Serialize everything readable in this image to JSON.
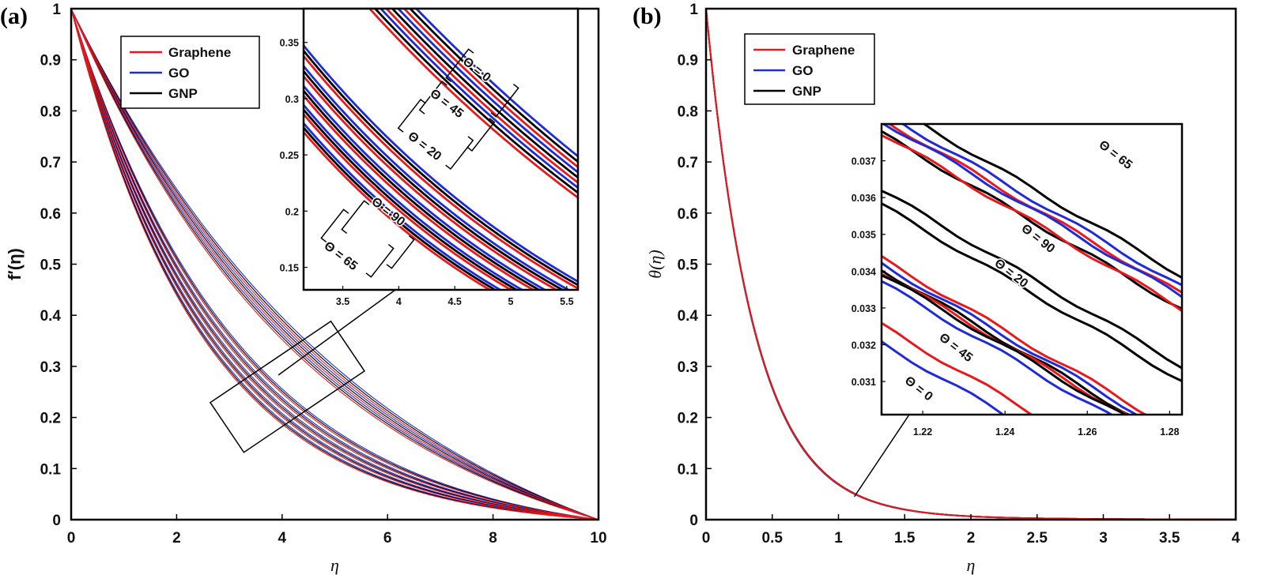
{
  "chart_data": [
    {
      "type": "line",
      "panel_label": "(a)",
      "xlabel": "η",
      "ylabel": "f′(η)",
      "xlim": [
        0,
        10
      ],
      "ylim": [
        0,
        1
      ],
      "xticks": [
        "0",
        "2",
        "4",
        "6",
        "8",
        "10"
      ],
      "yticks": [
        "0",
        "0.1",
        "0.2",
        "0.3",
        "0.4",
        "0.5",
        "0.6",
        "0.7",
        "0.8",
        "0.9",
        "1"
      ],
      "legend": {
        "position": "top-left",
        "entries": [
          {
            "name": "Graphene",
            "color": "#e8191c"
          },
          {
            "name": "GO",
            "color": "#1f2bd6"
          },
          {
            "name": "GNP",
            "color": "#000000"
          }
        ]
      },
      "series": [
        {
          "name": "Graphene",
          "color": "#e8191c",
          "decay_rates": [
            0.18,
            0.195,
            0.21,
            0.32,
            0.34,
            0.36,
            0.38,
            0.4
          ]
        },
        {
          "name": "GO",
          "color": "#1f2bd6",
          "decay_rates": [
            0.17,
            0.185,
            0.2,
            0.31,
            0.33,
            0.35,
            0.37,
            0.39
          ]
        },
        {
          "name": "GNP",
          "color": "#000000",
          "decay_rates": [
            0.175,
            0.19,
            0.205,
            0.315,
            0.335,
            0.355,
            0.375,
            0.395
          ]
        }
      ],
      "zoom_box": {
        "x": [
          3.3,
          4.9
        ],
        "y": [
          0.19,
          0.33
        ]
      },
      "inset": {
        "xlim": [
          3.15,
          5.6
        ],
        "ylim": [
          0.13,
          0.38
        ],
        "xticks": [
          "3.5",
          "4",
          "4.5",
          "5",
          "5.5"
        ],
        "yticks": [
          "0.15",
          "0.2",
          "0.25",
          "0.3",
          "0.35"
        ],
        "annotations": [
          "Θ = 0",
          "Θ = 45",
          "Θ = 20",
          "Θ = 90",
          "Θ = 65"
        ]
      }
    },
    {
      "type": "line",
      "panel_label": "(b)",
      "xlabel": "η",
      "ylabel": "θ(η)",
      "xlim": [
        0,
        4
      ],
      "ylim": [
        0,
        1
      ],
      "xticks": [
        "0",
        "0.5",
        "1",
        "1.5",
        "2",
        "2.5",
        "3",
        "3.5",
        "4"
      ],
      "yticks": [
        "0",
        "0.1",
        "0.2",
        "0.3",
        "0.4",
        "0.5",
        "0.6",
        "0.7",
        "0.8",
        "0.9",
        "1"
      ],
      "legend": {
        "position": "top-left",
        "entries": [
          {
            "name": "Graphene",
            "color": "#e8191c"
          },
          {
            "name": "GO",
            "color": "#1f2bd6"
          },
          {
            "name": "GNP",
            "color": "#000000"
          }
        ]
      },
      "series": [
        {
          "name": "Graphene",
          "color": "#e8191c",
          "decay_rate": 2.75
        },
        {
          "name": "GO",
          "color": "#1f2bd6",
          "decay_rate": 2.76
        },
        {
          "name": "GNP",
          "color": "#000000",
          "decay_rate": 2.74
        }
      ],
      "zoom_point": {
        "x": 1.12,
        "y": 0.045
      },
      "inset": {
        "xlim": [
          1.21,
          1.283
        ],
        "ylim": [
          0.0301,
          0.038
        ],
        "xticks": [
          "1.22",
          "1.24",
          "1.26",
          "1.28"
        ],
        "yticks": [
          "0.031",
          "0.032",
          "0.033",
          "0.034",
          "0.035",
          "0.036",
          "0.037"
        ],
        "annotations": [
          "Θ = 65",
          "Θ = 90",
          "Θ = 20",
          "Θ = 45",
          "Θ = 0"
        ]
      }
    }
  ]
}
